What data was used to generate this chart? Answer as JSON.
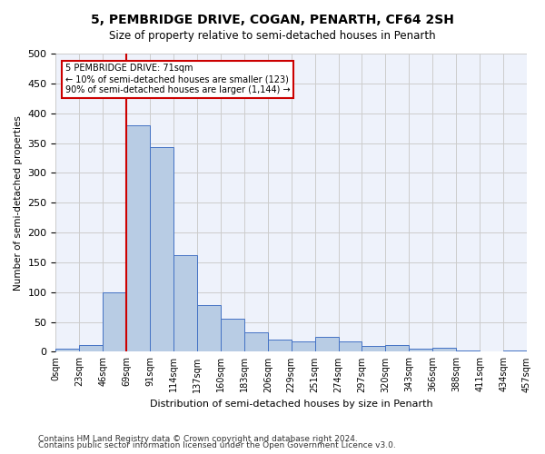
{
  "title": "5, PEMBRIDGE DRIVE, COGAN, PENARTH, CF64 2SH",
  "subtitle": "Size of property relative to semi-detached houses in Penarth",
  "xlabel": "Distribution of semi-detached houses by size in Penarth",
  "ylabel": "Number of semi-detached properties",
  "footnote1": "Contains HM Land Registry data © Crown copyright and database right 2024.",
  "footnote2": "Contains public sector information licensed under the Open Government Licence v3.0.",
  "bin_labels": [
    "0sqm",
    "23sqm",
    "46sqm",
    "69sqm",
    "91sqm",
    "114sqm",
    "137sqm",
    "160sqm",
    "183sqm",
    "206sqm",
    "229sqm",
    "251sqm",
    "274sqm",
    "297sqm",
    "320sqm",
    "343sqm",
    "366sqm",
    "388sqm",
    "411sqm",
    "434sqm",
    "457sqm"
  ],
  "bar_heights": [
    5,
    12,
    100,
    380,
    343,
    162,
    78,
    56,
    33,
    20,
    17,
    25,
    17,
    10,
    11,
    5,
    7,
    2,
    0,
    2
  ],
  "bar_color": "#b8cce4",
  "bar_edge_color": "#4472c4",
  "grid_color": "#cccccc",
  "annotation_box_color": "#cc0000",
  "subject_line_color": "#cc0000",
  "subject_bin_index": 3,
  "annotation_text_line1": "5 PEMBRIDGE DRIVE: 71sqm",
  "annotation_text_line2": "← 10% of semi-detached houses are smaller (123)",
  "annotation_text_line3": "90% of semi-detached houses are larger (1,144) →",
  "ylim": [
    0,
    500
  ],
  "yticks": [
    0,
    50,
    100,
    150,
    200,
    250,
    300,
    350,
    400,
    450,
    500
  ],
  "background_color": "#eef2fb"
}
